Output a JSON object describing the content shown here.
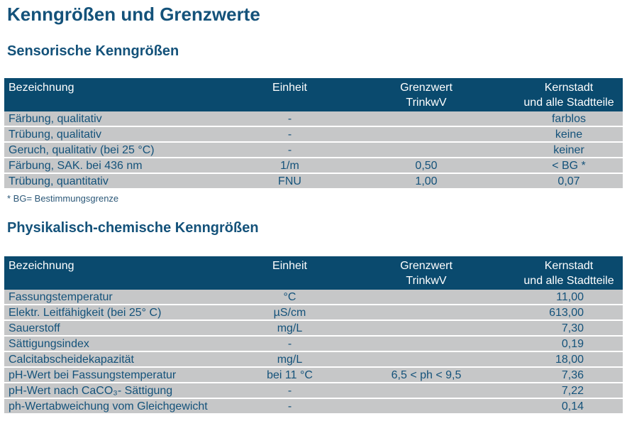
{
  "page": {
    "title": "Kenngrößen und Grenzwerte",
    "footnote": "* BG= Bestimmungsgrenze"
  },
  "colors": {
    "header_bg": "#0a4a6e",
    "row_bg": "#c6c7c8",
    "text_blue": "#14527a",
    "header_text": "#ffffff"
  },
  "tables": [
    {
      "section_title": "Sensorische Kenngrößen",
      "columns": [
        [
          "Bezeichnung"
        ],
        [
          "Einheit"
        ],
        [
          "Grenzwert",
          "TrinkwV"
        ],
        [
          "Kernstadt",
          "und alle Stadtteile"
        ]
      ],
      "value_align": "center",
      "rows": [
        [
          "Färbung, qualitativ",
          "-",
          "",
          "farblos"
        ],
        [
          "Trübung, qualitativ",
          "-",
          "",
          "keine"
        ],
        [
          "Geruch, qualitativ (bei 25 °C)",
          "-",
          "",
          "keiner"
        ],
        [
          "Färbung, SAK. bei 436 nm",
          "1/m",
          "0,50",
          "< BG *"
        ],
        [
          "Trübung, quantitativ",
          "FNU",
          "1,00",
          "0,07"
        ]
      ]
    },
    {
      "section_title": "Physikalisch-chemische Kenngrößen",
      "columns": [
        [
          "Bezeichnung"
        ],
        [
          "Einheit"
        ],
        [
          "Grenzwert",
          "TrinkwV"
        ],
        [
          "Kernstadt",
          "und alle Stadtteile"
        ]
      ],
      "value_align": "right",
      "rows": [
        [
          "Fassungstemperatur",
          "°C",
          "",
          "11,00"
        ],
        [
          "Elektr. Leitfähigkeit (bei 25° C)",
          "µS/cm",
          "",
          "613,00"
        ],
        [
          "Sauerstoff",
          "mg/L",
          "",
          "7,30"
        ],
        [
          "Sättigungsindex",
          "-",
          "",
          "0,19"
        ],
        [
          "Calcitabscheidekapazität",
          "mg/L",
          "",
          "18,00"
        ],
        [
          "pH-Wert bei Fassungstemperatur",
          "bei 11 °C",
          "6,5 < ph < 9,5",
          "7,36"
        ],
        [
          "pH-Wert nach CaCO₃- Sättigung",
          "-",
          "",
          "7,22"
        ],
        [
          "ph-Wertabweichung vom Gleichgewicht",
          "-",
          "",
          "0,14"
        ]
      ]
    }
  ]
}
